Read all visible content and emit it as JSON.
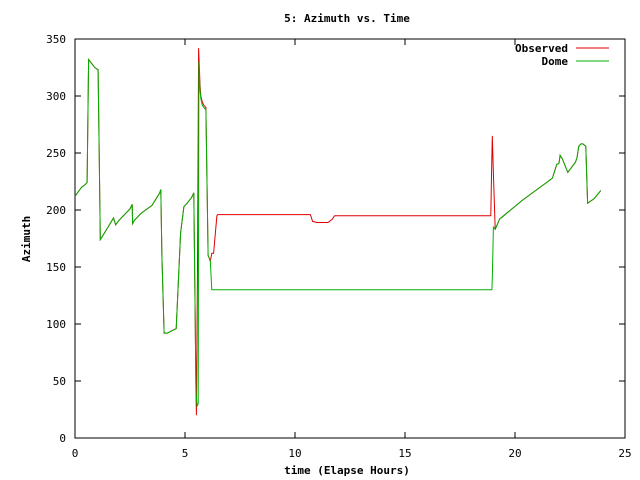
{
  "chart_data": {
    "type": "line",
    "title": "5: Azimuth vs. Time",
    "xlabel": "time (Elapse Hours)",
    "ylabel": "Azimuth",
    "xlim": [
      0,
      25
    ],
    "ylim": [
      0,
      350
    ],
    "xticks": [
      0,
      5,
      10,
      15,
      20,
      25
    ],
    "yticks": [
      0,
      50,
      100,
      150,
      200,
      250,
      300,
      350
    ],
    "grid": false,
    "legend_position": "top-right",
    "series": [
      {
        "name": "Observed",
        "color": "#e00000",
        "x": [
          0,
          0.3,
          0.45,
          0.55,
          0.62,
          0.7,
          0.9,
          1.05,
          1.1,
          1.15,
          1.25,
          1.5,
          1.75,
          1.85,
          2.0,
          2.5,
          2.6,
          2.62,
          2.7,
          3.0,
          3.5,
          3.85,
          3.9,
          3.95,
          4.05,
          4.2,
          4.5,
          4.6,
          4.8,
          4.95,
          5.1,
          5.3,
          5.4,
          5.5,
          5.52,
          5.57,
          5.62,
          5.68,
          5.72,
          5.78,
          5.85,
          5.95,
          6.05,
          6.1,
          6.15,
          6.22,
          6.3,
          6.45,
          6.48,
          6.5,
          10.7,
          10.8,
          11.0,
          11.5,
          11.7,
          11.8,
          12.0,
          18.9,
          18.93,
          18.97,
          19.02,
          19.1,
          19.3,
          19.8,
          20.3,
          21.0,
          21.5,
          21.7,
          21.9,
          22.0,
          22.05,
          22.15,
          22.4,
          22.75,
          22.82,
          22.9,
          23.0,
          23.08,
          23.22,
          23.3,
          23.6,
          23.9
        ],
        "y": [
          212,
          220,
          222,
          224,
          332,
          330,
          325,
          323,
          250,
          174,
          177,
          185,
          193,
          187,
          191,
          201,
          205,
          188,
          191,
          197,
          204,
          215,
          218,
          160,
          92,
          92,
          95,
          96,
          180,
          203,
          206,
          211,
          215,
          40,
          20,
          150,
          342,
          310,
          300,
          295,
          292,
          290,
          160,
          158,
          155,
          162,
          162,
          195,
          196,
          196,
          196,
          190,
          189,
          189,
          192,
          195,
          195,
          195,
          230,
          265,
          232,
          183,
          192,
          200,
          208,
          218,
          225,
          228,
          240,
          241,
          248,
          245,
          233,
          242,
          246,
          256,
          258,
          258,
          256,
          206,
          210,
          217
        ]
      },
      {
        "name": "Dome",
        "color": "#00b000",
        "x": [
          0,
          0.3,
          0.45,
          0.55,
          0.62,
          0.7,
          0.9,
          1.05,
          1.1,
          1.15,
          1.25,
          1.5,
          1.75,
          1.85,
          2.0,
          2.5,
          2.6,
          2.62,
          2.7,
          3.0,
          3.5,
          3.85,
          3.9,
          3.95,
          4.05,
          4.2,
          4.5,
          4.6,
          4.8,
          4.95,
          5.1,
          5.3,
          5.4,
          5.5,
          5.55,
          5.6,
          5.63,
          5.68,
          5.72,
          5.78,
          5.85,
          5.95,
          6.05,
          6.1,
          6.15,
          6.22,
          6.3,
          18.95,
          18.97,
          19.02,
          19.1,
          19.3,
          19.8,
          20.3,
          21.0,
          21.5,
          21.7,
          21.9,
          22.0,
          22.05,
          22.15,
          22.4,
          22.75,
          22.82,
          22.9,
          23.0,
          23.08,
          23.22,
          23.3,
          23.6,
          23.9
        ],
        "y": [
          212,
          220,
          222,
          224,
          332,
          330,
          325,
          323,
          250,
          174,
          177,
          185,
          193,
          187,
          191,
          201,
          205,
          188,
          191,
          197,
          204,
          215,
          218,
          160,
          92,
          92,
          95,
          96,
          180,
          203,
          206,
          211,
          215,
          40,
          28,
          30,
          330,
          305,
          298,
          292,
          290,
          288,
          160,
          158,
          155,
          130,
          130,
          130,
          140,
          185,
          183,
          192,
          200,
          208,
          218,
          225,
          228,
          240,
          241,
          248,
          245,
          233,
          242,
          246,
          256,
          258,
          258,
          256,
          206,
          210,
          217
        ]
      }
    ]
  }
}
